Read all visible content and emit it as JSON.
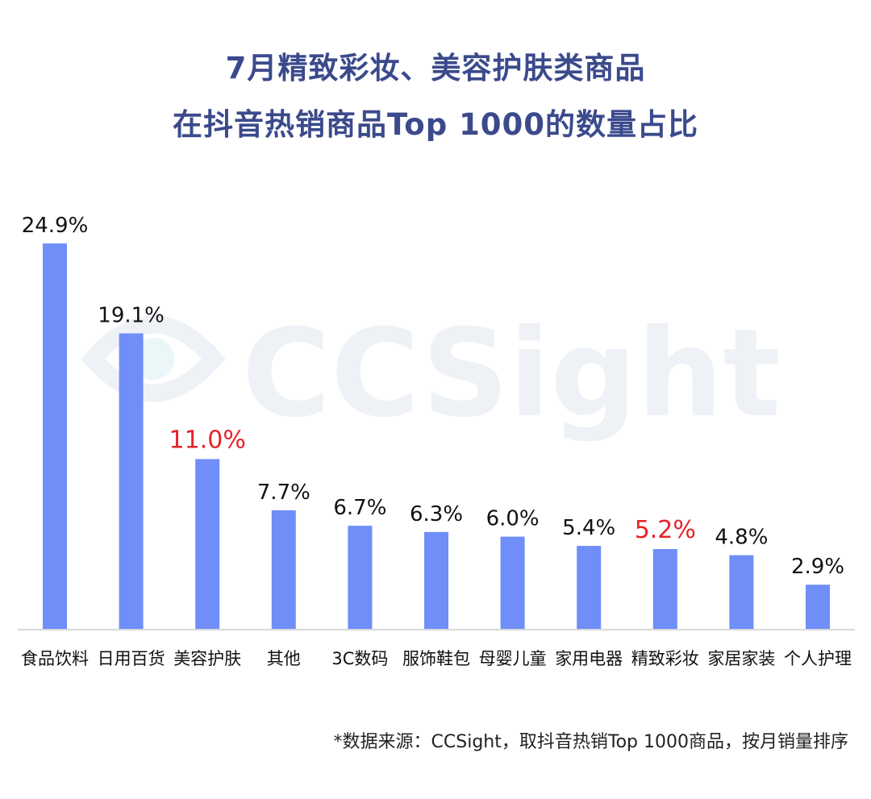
{
  "title": {
    "line1": "7月精致彩妆、美容护肤类商品",
    "line2": "在抖音热销商品Top 1000的数量占比"
  },
  "watermark": "CCSight",
  "source_note": "*数据来源：CCSight，取抖音热销Top 1000商品，按月销量排序",
  "colors": {
    "bar": "#6f8ef7",
    "title": "#3b4a8c",
    "label": "#111111",
    "highlight": "#e5222b",
    "axis": "#d9d9d9",
    "watermark": "#eef1f6"
  },
  "chart_data": {
    "type": "bar",
    "categories": [
      "食品饮料",
      "日用百货",
      "美容护肤",
      "其他",
      "3C数码",
      "服饰鞋包",
      "母婴儿童",
      "家用电器",
      "精致彩妆",
      "家居家装",
      "个人护理"
    ],
    "values": [
      24.9,
      19.1,
      11.0,
      7.7,
      6.7,
      6.3,
      6.0,
      5.4,
      5.2,
      4.8,
      2.9
    ],
    "value_labels": [
      "24.9%",
      "19.1%",
      "11.0%",
      "7.7%",
      "6.7%",
      "6.3%",
      "6.0%",
      "5.4%",
      "5.2%",
      "4.8%",
      "2.9%"
    ],
    "highlighted": [
      "美容护肤",
      "精致彩妆"
    ],
    "unit": "%",
    "ylim": [
      0,
      25
    ],
    "grid": false,
    "legend": "none"
  }
}
